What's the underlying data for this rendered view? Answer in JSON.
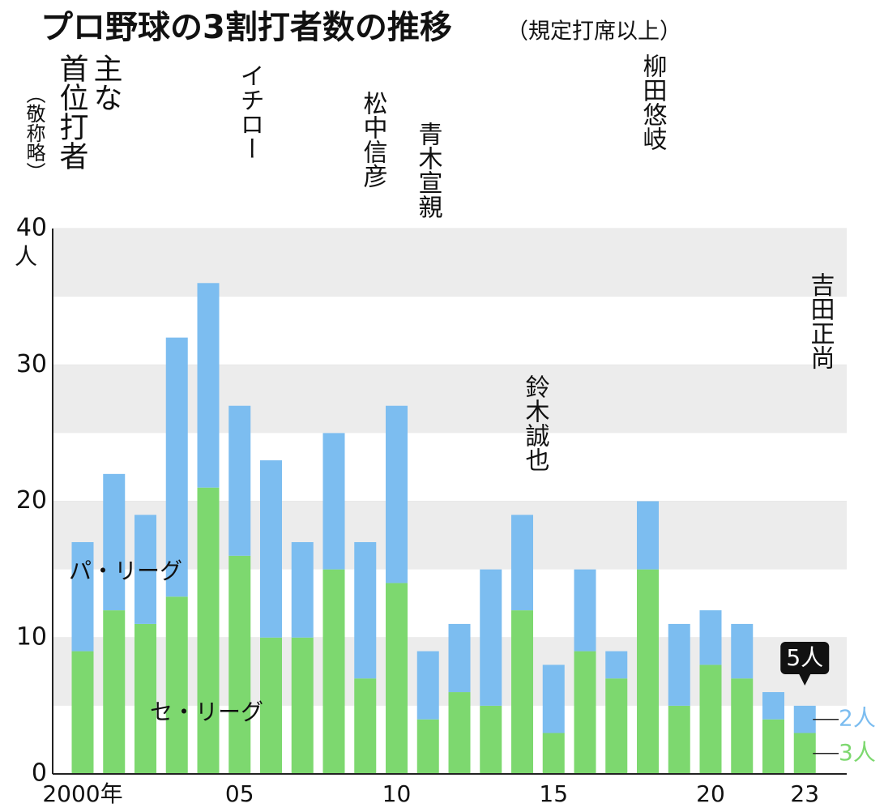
{
  "chart_data": {
    "type": "stacked-bar",
    "title": "プロ野球の3割打者数の推移",
    "subtitle": "（規定打席以上）",
    "y_unit": "人",
    "categories": [
      "2000年",
      null,
      null,
      null,
      null,
      "05",
      null,
      null,
      null,
      null,
      "10",
      null,
      null,
      null,
      null,
      "15",
      null,
      null,
      null,
      null,
      "20",
      null,
      null,
      "23"
    ],
    "series": [
      {
        "name": "セ・リーグ",
        "color": "#7dd86f",
        "values": [
          9,
          12,
          11,
          13,
          21,
          16,
          10,
          10,
          15,
          7,
          14,
          4,
          6,
          5,
          12,
          3,
          9,
          7,
          15,
          5,
          8,
          7,
          4,
          3
        ]
      },
      {
        "name": "パ・リーグ",
        "color": "#7cbdf0",
        "values": [
          8,
          10,
          8,
          19,
          15,
          11,
          13,
          7,
          10,
          10,
          13,
          5,
          5,
          10,
          7,
          5,
          6,
          2,
          5,
          6,
          4,
          4,
          2,
          2
        ]
      }
    ],
    "ylim": [
      0,
      40
    ],
    "yticks": [
      0,
      10,
      20,
      30,
      40
    ],
    "grid": true,
    "annotations": {
      "total": "5人",
      "pacific": "2人",
      "central": "3人"
    },
    "players_heading": [
      "主な",
      "首位打者"
    ],
    "players_note": "（敬称略）",
    "players": [
      "イチロー",
      "松中信彦",
      "青木宣親",
      "柳田悠岐",
      "鈴木誠也",
      "吉田正尚"
    ]
  }
}
